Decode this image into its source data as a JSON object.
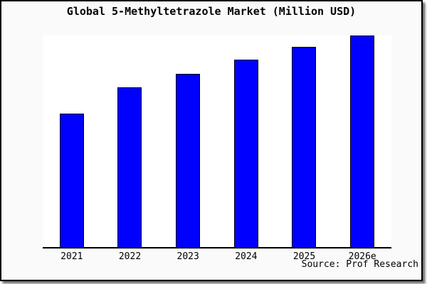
{
  "window": {
    "background_color": "#fafafa",
    "frame_border_color": "#000000"
  },
  "chart_data": {
    "type": "bar",
    "title": "Global 5-Methyltetrazole Market (Million USD)",
    "unit": "Million USD",
    "categories": [
      "2021",
      "2022",
      "2023",
      "2024",
      "2025",
      "2026e"
    ],
    "values": [
      63,
      75.5,
      82,
      88.5,
      94.5,
      100
    ],
    "values_note": "No y-axis scale is printed on the chart; values are relative bar heights with tallest bar (2026e) = 100",
    "xlabel": "",
    "ylabel": "",
    "yaxis_visible": false,
    "gridlines": false,
    "legend": false,
    "bar_color": "#0000ff",
    "bar_border_color": "#000000",
    "plot_background": "#ffffff",
    "axis_line_color": "#000000",
    "source": "Source: Prof Research"
  }
}
